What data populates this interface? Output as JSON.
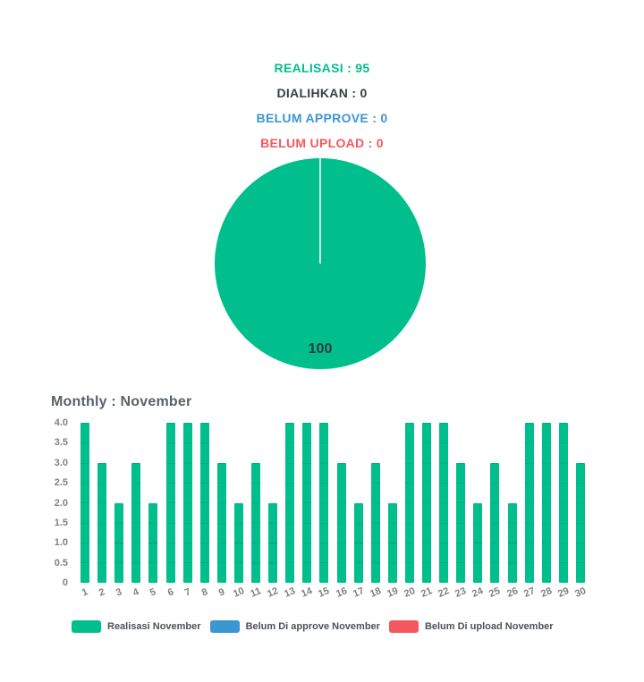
{
  "page": {
    "background": "#FFFFFF"
  },
  "header": {
    "stats": [
      {
        "key": "realisasi",
        "label": "REALISASI",
        "value": 95,
        "color": "#00BF8D"
      },
      {
        "key": "dialihkan",
        "label": "DIALIHKAN",
        "value": 0,
        "color": "#363F46"
      },
      {
        "key": "belum-approve",
        "label": "BELUM APPROVE",
        "value": 0,
        "color": "#3B96D2"
      },
      {
        "key": "belum-upload",
        "label": "BELUM UPLOAD",
        "value": 0,
        "color": "#F4585E"
      }
    ]
  },
  "chart_data": [
    {
      "type": "pie",
      "title": "",
      "slices": [
        {
          "label": "100",
          "value": 100,
          "color": "#00BF8D"
        }
      ],
      "divider_color": "rgba(255,255,255,0.8)",
      "label_color": "#2F3A41",
      "start_angle": 0,
      "legend_position": "none"
    },
    {
      "type": "bar",
      "title": "Monthly : November",
      "title_color": "#59616B",
      "categories": [
        1,
        2,
        3,
        4,
        5,
        6,
        7,
        8,
        9,
        10,
        11,
        12,
        13,
        14,
        15,
        16,
        17,
        18,
        19,
        20,
        21,
        22,
        23,
        24,
        25,
        26,
        27,
        28,
        29,
        30
      ],
      "series": [
        {
          "name": "Realisasi November",
          "color": "#00BF8D",
          "values": [
            4,
            3,
            2,
            3,
            2,
            4,
            4,
            4,
            3,
            2,
            3,
            2,
            4,
            4,
            4,
            3,
            2,
            3,
            2,
            4,
            4,
            4,
            3,
            2,
            3,
            2,
            4,
            4,
            4,
            3
          ]
        },
        {
          "name": "Belum Di approve November",
          "color": "#3B96D2",
          "values": [
            0,
            0,
            0,
            0,
            0,
            0,
            0,
            0,
            0,
            0,
            0,
            0,
            0,
            0,
            0,
            0,
            0,
            0,
            0,
            0,
            0,
            0,
            0,
            0,
            0,
            0,
            0,
            0,
            0,
            0
          ]
        },
        {
          "name": "Belum Di upload November",
          "color": "#F4585E",
          "values": [
            0,
            0,
            0,
            0,
            0,
            0,
            0,
            0,
            0,
            0,
            0,
            0,
            0,
            0,
            0,
            0,
            0,
            0,
            0,
            0,
            0,
            0,
            0,
            0,
            0,
            0,
            0,
            0,
            0,
            0
          ]
        }
      ],
      "xlabel": "",
      "ylabel": "",
      "ylim": [
        0,
        4
      ],
      "yticks": [
        {
          "label": "4.0",
          "value": 4.0
        },
        {
          "label": "3.5",
          "value": 3.5
        },
        {
          "label": "3.0",
          "value": 3.0
        },
        {
          "label": "2.5",
          "value": 2.5
        },
        {
          "label": "2.0",
          "value": 2.0
        },
        {
          "label": "1.5",
          "value": 1.5
        },
        {
          "label": "1.0",
          "value": 1.0
        },
        {
          "label": "0.5",
          "value": 0.5
        },
        {
          "label": "0",
          "value": 0.0
        }
      ],
      "grid": false,
      "axis_label_color": "#7E8387",
      "legend_position": "bottom",
      "legend_text_color": "#4C5257"
    }
  ]
}
